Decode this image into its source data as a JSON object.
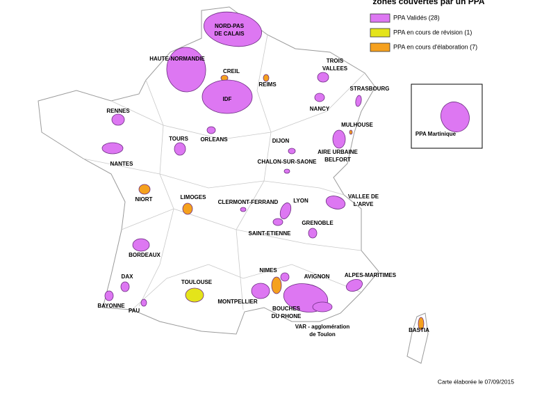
{
  "title": "zones couvertes par un PPA",
  "legend": [
    {
      "label": "PPA Validés (28)",
      "color": "#dd77f2"
    },
    {
      "label": "PPA en cours de révision (1)",
      "color": "#e4e41a"
    },
    {
      "label": "PPA en cours d'élaboration (7)",
      "color": "#f5a11e"
    }
  ],
  "places": [
    {
      "lines": [
        "NORD-PAS",
        "DE CALAIS"
      ],
      "color": "#dd77f2"
    },
    {
      "lines": [
        "HAUTE-NORMANDIE"
      ],
      "color": "#dd77f2"
    },
    {
      "lines": [
        "CREIL"
      ],
      "color": "#f5a11e"
    },
    {
      "lines": [
        "REIMS"
      ],
      "color": "#f5a11e"
    },
    {
      "lines": [
        "TROIS",
        "VALLEES"
      ],
      "color": "#dd77f2"
    },
    {
      "lines": [
        "STRASBOURG"
      ],
      "color": "#dd77f2"
    },
    {
      "lines": [
        "RENNES"
      ],
      "color": "#dd77f2"
    },
    {
      "lines": [
        "IDF"
      ],
      "color": "#dd77f2"
    },
    {
      "lines": [
        "NANCY"
      ],
      "color": "#dd77f2"
    },
    {
      "lines": [
        "MULHOUSE"
      ],
      "color": "#f5a11e"
    },
    {
      "lines": [
        "TOURS"
      ],
      "color": "#dd77f2"
    },
    {
      "lines": [
        "ORLEANS"
      ],
      "color": "#dd77f2"
    },
    {
      "lines": [
        "DIJON"
      ],
      "color": "#dd77f2"
    },
    {
      "lines": [
        "NANTES"
      ],
      "color": "#dd77f2"
    },
    {
      "lines": [
        "AIRE URBAINE",
        "BELFORT"
      ],
      "color": "#dd77f2"
    },
    {
      "lines": [
        "CHALON-SUR-SAONE"
      ],
      "color": "#dd77f2"
    },
    {
      "lines": [
        "NIORT"
      ],
      "color": "#f5a11e"
    },
    {
      "lines": [
        "LIMOGES"
      ],
      "color": "#f5a11e"
    },
    {
      "lines": [
        "CLERMONT-FERRAND"
      ],
      "color": "#dd77f2"
    },
    {
      "lines": [
        "LYON"
      ],
      "color": "#dd77f2"
    },
    {
      "lines": [
        "VALLEE DE",
        "L'ARVE"
      ],
      "color": "#dd77f2"
    },
    {
      "lines": [
        "SAINT-ETIENNE"
      ],
      "color": "#dd77f2"
    },
    {
      "lines": [
        "GRENOBLE"
      ],
      "color": "#dd77f2"
    },
    {
      "lines": [
        "BORDEAUX"
      ],
      "color": "#dd77f2"
    },
    {
      "lines": [
        "NIMES"
      ],
      "color": "#f5a11e"
    },
    {
      "lines": [
        "AVIGNON"
      ],
      "color": "#dd77f2"
    },
    {
      "lines": [
        "ALPES-MARITIMES"
      ],
      "color": "#dd77f2"
    },
    {
      "lines": [
        "DAX"
      ],
      "color": "#dd77f2"
    },
    {
      "lines": [
        "TOULOUSE"
      ],
      "color": "#e4e41a"
    },
    {
      "lines": [
        "BAYONNE"
      ],
      "color": "#dd77f2"
    },
    {
      "lines": [
        "PAU"
      ],
      "color": "#dd77f2"
    },
    {
      "lines": [
        "MONTPELLIER"
      ],
      "color": "#dd77f2"
    },
    {
      "lines": [
        "BOUCHES",
        "DU RHONE"
      ],
      "color": "#dd77f2"
    },
    {
      "lines": [
        "VAR - agglomération",
        "de Toulon"
      ],
      "color": "#dd77f2"
    },
    {
      "lines": [
        "BASTIA"
      ],
      "color": "#f5a11e"
    },
    {
      "lines": [
        "PPA Martinique"
      ],
      "color": "#dd77f2"
    }
  ],
  "footer": "Carte élaborée le 07/09/2015"
}
